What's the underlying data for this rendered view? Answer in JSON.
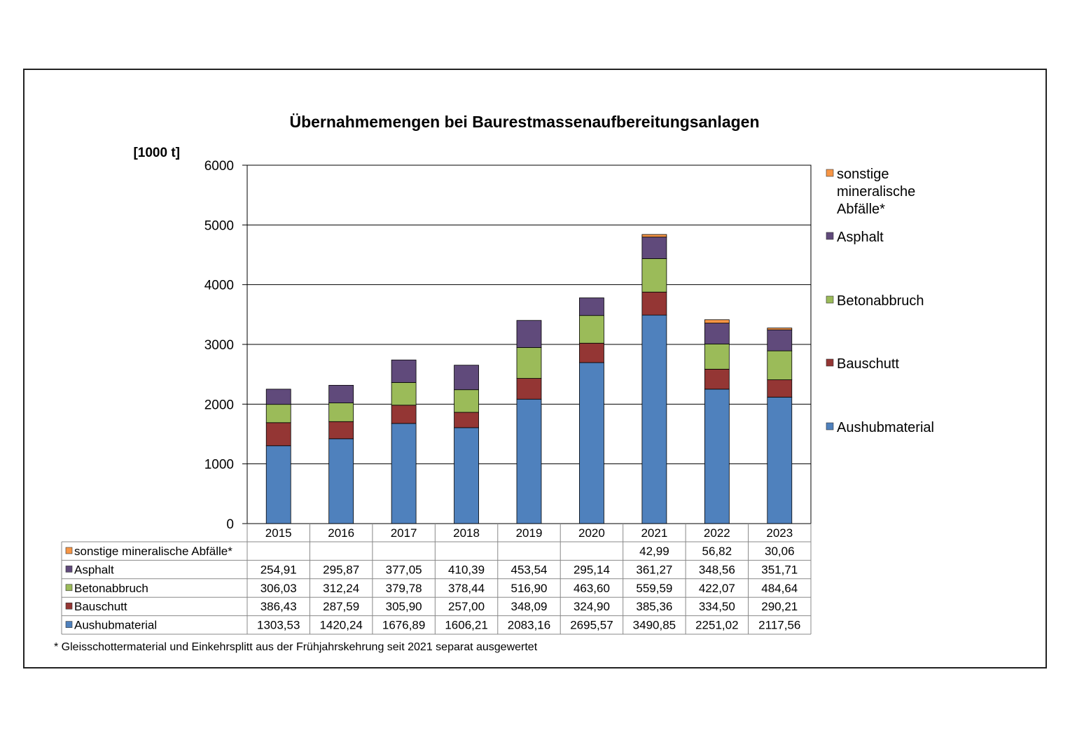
{
  "chart_data": {
    "type": "bar",
    "stacked": true,
    "title": "Übernahmemengen bei Baurestmassenaufbereitungsanlagen",
    "ylabel": "[1000 t]",
    "ylim": [
      0,
      6000
    ],
    "yticks": [
      "0",
      "1000",
      "2000",
      "3000",
      "4000",
      "5000",
      "6000"
    ],
    "grid": true,
    "legend_position": "right",
    "categories": [
      "2015",
      "2016",
      "2017",
      "2018",
      "2019",
      "2020",
      "2021",
      "2022",
      "2023"
    ],
    "series": [
      {
        "name": "Aushubmaterial",
        "color": "#4f81bd",
        "values": [
          1303.53,
          1420.24,
          1676.89,
          1606.21,
          2083.16,
          2695.57,
          3490.85,
          2251.02,
          2117.56
        ],
        "labels": [
          "1303,53",
          "1420,24",
          "1676,89",
          "1606,21",
          "2083,16",
          "2695,57",
          "3490,85",
          "2251,02",
          "2117,56"
        ]
      },
      {
        "name": "Bauschutt",
        "color": "#943634",
        "values": [
          386.43,
          287.59,
          305.9,
          257.0,
          348.09,
          324.9,
          385.36,
          334.5,
          290.21
        ],
        "labels": [
          "386,43",
          "287,59",
          "305,90",
          "257,00",
          "348,09",
          "324,90",
          "385,36",
          "334,50",
          "290,21"
        ]
      },
      {
        "name": "Betonabbruch",
        "color": "#9bbb59",
        "values": [
          306.03,
          312.24,
          379.78,
          378.44,
          516.9,
          463.6,
          559.59,
          422.07,
          484.64
        ],
        "labels": [
          "306,03",
          "312,24",
          "379,78",
          "378,44",
          "516,90",
          "463,60",
          "559,59",
          "422,07",
          "484,64"
        ]
      },
      {
        "name": "Asphalt",
        "color": "#604a7b",
        "values": [
          254.91,
          295.87,
          377.05,
          410.39,
          453.54,
          295.14,
          361.27,
          348.56,
          351.71
        ],
        "labels": [
          "254,91",
          "295,87",
          "377,05",
          "410,39",
          "453,54",
          "295,14",
          "361,27",
          "348,56",
          "351,71"
        ]
      },
      {
        "name": "sonstige mineralische Abfälle*",
        "color": "#f79646",
        "values": [
          null,
          null,
          null,
          null,
          null,
          null,
          42.99,
          56.82,
          30.06
        ],
        "labels": [
          "",
          "",
          "",
          "",
          "",
          "",
          "42,99",
          "56,82",
          "30,06"
        ]
      }
    ],
    "legend_lines": [
      {
        "series": "sonstige mineralische Abfälle*",
        "lines": [
          "sonstige",
          "mineralische",
          "Abfälle*"
        ]
      },
      {
        "series": "Asphalt",
        "lines": [
          "Asphalt"
        ]
      },
      {
        "series": "Betonabbruch",
        "lines": [
          "Betonabbruch"
        ]
      },
      {
        "series": "Bauschutt",
        "lines": [
          "Bauschutt"
        ]
      },
      {
        "series": "Aushubmaterial",
        "lines": [
          "Aushubmaterial"
        ]
      }
    ],
    "footnote": "* Gleisschottermaterial und Einkehrsplitt aus der Frühjahrskehrung seit 2021 separat ausgewertet"
  }
}
